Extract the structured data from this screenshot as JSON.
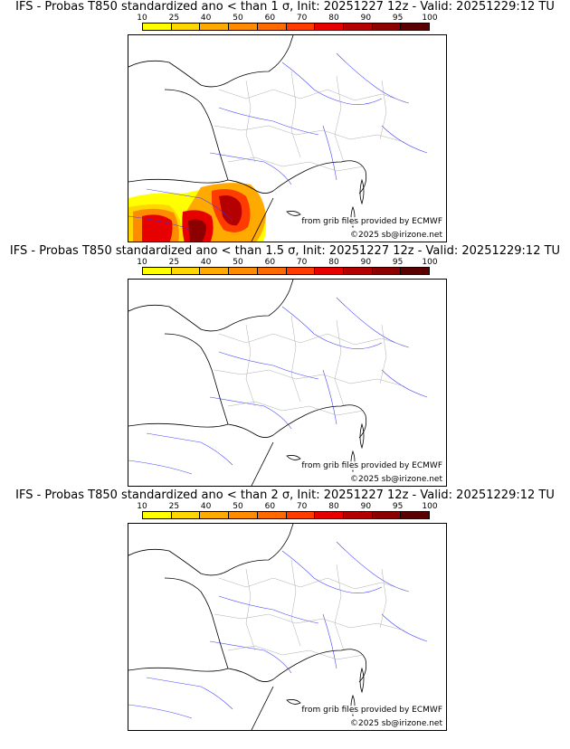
{
  "colorbar": {
    "ticks": [
      "10",
      "25",
      "40",
      "50",
      "60",
      "70",
      "80",
      "90",
      "95",
      "100"
    ],
    "colors": [
      "#ffff00",
      "#ffd700",
      "#ffaa00",
      "#ff8c00",
      "#ff6a00",
      "#ff3c00",
      "#e60000",
      "#b40000",
      "#8c0000",
      "#5a0000"
    ]
  },
  "panels": [
    {
      "title": "IFS - Probas T850  standardized ano < than 1 σ, Init: 20251227 12z - Valid: 20251229:12 TU",
      "credit_source": "from grib files provided by ECMWF",
      "credit_copyright": "©2025 sb@irizone.net",
      "has_probability_field": true
    },
    {
      "title": "IFS - Probas T850  standardized ano < than 1.5 σ, Init: 20251227 12z - Valid: 20251229:12 TU",
      "credit_source": "from grib files provided by ECMWF",
      "credit_copyright": "©2025 sb@irizone.net",
      "has_probability_field": false
    },
    {
      "title": "IFS - Probas T850  standardized ano < than 2 σ, Init: 20251227 12z - Valid: 20251229:12 TU",
      "credit_source": "from grib files provided by ECMWF",
      "credit_copyright": "©2025 sb@irizone.net",
      "has_probability_field": false
    }
  ]
}
